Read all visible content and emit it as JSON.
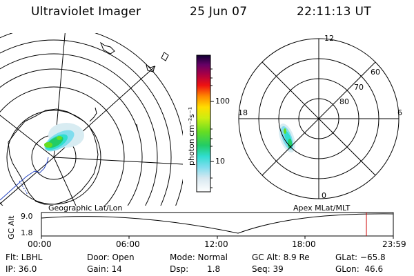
{
  "header": {
    "title": "Ultraviolet Imager",
    "date": "25 Jun 07",
    "time": "22:11:13 UT"
  },
  "colorbar": {
    "unit_label": "photon cm⁻²s⁻¹",
    "ticks": [
      {
        "label": "100",
        "value": 100
      },
      {
        "label": "10",
        "value": 10
      }
    ]
  },
  "polar_plot": {
    "mlt_labels": [
      "12",
      "18",
      "6",
      "0"
    ],
    "lat_labels": [
      "60",
      "70",
      "80"
    ]
  },
  "map_labels": {
    "left": "Geographic Lat/Lon",
    "right": "Apex MLat/MLT"
  },
  "altitude_strip": {
    "ylabel": "GC Alt",
    "yticks": [
      "9.0",
      "1.8"
    ],
    "xticks": [
      "00:00",
      "06:00",
      "12:00",
      "18:00",
      "23:59"
    ]
  },
  "status": {
    "flt": "Flt: LBHL",
    "ip": "IP: 36.0",
    "door": "Door: Open",
    "gain": "Gain: 14",
    "mode": "Mode: Normal",
    "dsp_label": "Dsp:",
    "dsp_value": "1.8",
    "gcalt": "GC Alt: 8.9 Re",
    "seq": "Seq: 39",
    "glat": "GLat: −65.8",
    "glon": "GLon:  46.6"
  },
  "colors": {
    "cursor": "#cc0000",
    "coast": "#000000",
    "track": "#2040c0"
  }
}
